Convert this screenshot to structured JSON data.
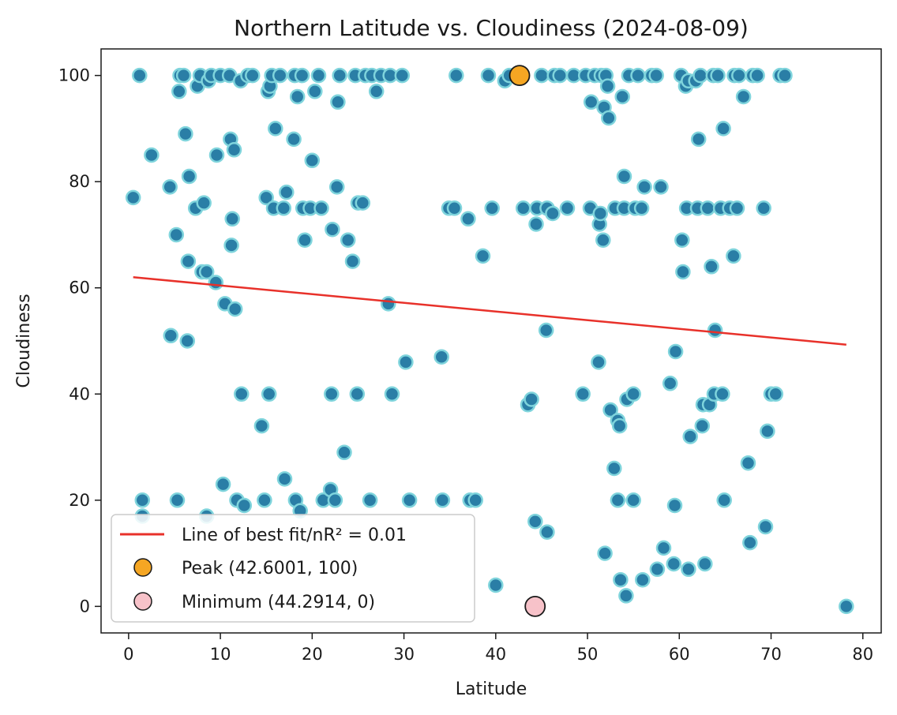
{
  "chart_data": {
    "type": "scatter",
    "title": "Northern Latitude vs. Cloudiness (2024-08-09)",
    "xlabel": "Latitude",
    "ylabel": "Cloudiness",
    "xlim": [
      -3,
      82
    ],
    "ylim": [
      -5,
      105
    ],
    "xticks": [
      0,
      10,
      20,
      30,
      40,
      50,
      60,
      70,
      80
    ],
    "yticks": [
      0,
      20,
      40,
      60,
      80,
      100
    ],
    "grid": false,
    "legend_position": "lower-left",
    "colors": {
      "points_fill": "#2a7ea6",
      "points_edge": "#7fd4dc",
      "fit_line": "#e8312a",
      "peak_marker": "#f5a623",
      "min_marker": "#f7c2c9",
      "marker_edge": "#1a1a1a"
    },
    "series": [
      {
        "name": "Cities",
        "points": [
          [
            0.5,
            77
          ],
          [
            1.2,
            100
          ],
          [
            1.5,
            20
          ],
          [
            1.5,
            17
          ],
          [
            2.5,
            85
          ],
          [
            4.5,
            79
          ],
          [
            4.6,
            51
          ],
          [
            5.2,
            70
          ],
          [
            5.3,
            20
          ],
          [
            5.5,
            97
          ],
          [
            5.6,
            100
          ],
          [
            6.0,
            100
          ],
          [
            6.2,
            89
          ],
          [
            6.4,
            50
          ],
          [
            6.5,
            65
          ],
          [
            6.6,
            81
          ],
          [
            7.3,
            75
          ],
          [
            7.5,
            98
          ],
          [
            7.8,
            100
          ],
          [
            8.0,
            63
          ],
          [
            8.2,
            76
          ],
          [
            8.5,
            63
          ],
          [
            8.5,
            17
          ],
          [
            8.7,
            99
          ],
          [
            9.0,
            100
          ],
          [
            9.5,
            61
          ],
          [
            9.6,
            85
          ],
          [
            10.0,
            100
          ],
          [
            10.5,
            57
          ],
          [
            10.3,
            23
          ],
          [
            11.0,
            100
          ],
          [
            11.1,
            88
          ],
          [
            11.2,
            68
          ],
          [
            11.3,
            73
          ],
          [
            11.5,
            86
          ],
          [
            11.6,
            56
          ],
          [
            11.8,
            20
          ],
          [
            12.2,
            99
          ],
          [
            12.3,
            40
          ],
          [
            12.6,
            19
          ],
          [
            13.0,
            100
          ],
          [
            13.5,
            100
          ],
          [
            14.5,
            34
          ],
          [
            14.8,
            20
          ],
          [
            15.0,
            77
          ],
          [
            15.2,
            97
          ],
          [
            15.3,
            40
          ],
          [
            15.4,
            98
          ],
          [
            15.6,
            100
          ],
          [
            15.8,
            75
          ],
          [
            16.0,
            90
          ],
          [
            16.5,
            100
          ],
          [
            16.9,
            75
          ],
          [
            17.0,
            24
          ],
          [
            17.2,
            78
          ],
          [
            18.0,
            88
          ],
          [
            18.1,
            100
          ],
          [
            18.2,
            20
          ],
          [
            18.4,
            96
          ],
          [
            18.7,
            18
          ],
          [
            18.9,
            100
          ],
          [
            19.0,
            75
          ],
          [
            19.2,
            69
          ],
          [
            19.8,
            75
          ],
          [
            20.0,
            84
          ],
          [
            20.3,
            97
          ],
          [
            20.7,
            100
          ],
          [
            21.0,
            75
          ],
          [
            21.2,
            20
          ],
          [
            22.0,
            22
          ],
          [
            22.1,
            40
          ],
          [
            22.2,
            71
          ],
          [
            22.5,
            20
          ],
          [
            22.7,
            79
          ],
          [
            22.8,
            95
          ],
          [
            23.0,
            100
          ],
          [
            23.5,
            29
          ],
          [
            23.9,
            69
          ],
          [
            24.4,
            65
          ],
          [
            24.7,
            100
          ],
          [
            24.9,
            40
          ],
          [
            25.0,
            76
          ],
          [
            25.5,
            76
          ],
          [
            25.8,
            100
          ],
          [
            26.3,
            20
          ],
          [
            26.5,
            100
          ],
          [
            27.0,
            97
          ],
          [
            27.5,
            100
          ],
          [
            28.3,
            57
          ],
          [
            28.5,
            100
          ],
          [
            28.7,
            40
          ],
          [
            29.8,
            100
          ],
          [
            30.2,
            46
          ],
          [
            30.6,
            20
          ],
          [
            34.1,
            47
          ],
          [
            34.2,
            20
          ],
          [
            34.9,
            75
          ],
          [
            35.5,
            75
          ],
          [
            35.7,
            100
          ],
          [
            37.0,
            73
          ],
          [
            37.2,
            20
          ],
          [
            37.8,
            20
          ],
          [
            38.6,
            66
          ],
          [
            39.2,
            100
          ],
          [
            39.6,
            75
          ],
          [
            40.0,
            4
          ],
          [
            41.0,
            99
          ],
          [
            41.5,
            100
          ],
          [
            42.8,
            100
          ],
          [
            43.0,
            75
          ],
          [
            43.5,
            38
          ],
          [
            43.9,
            39
          ],
          [
            44.3,
            16
          ],
          [
            44.4,
            72
          ],
          [
            44.5,
            75
          ],
          [
            45.0,
            100
          ],
          [
            45.5,
            52
          ],
          [
            45.6,
            75
          ],
          [
            45.6,
            14
          ],
          [
            46.2,
            74
          ],
          [
            46.4,
            100
          ],
          [
            47.0,
            100
          ],
          [
            47.8,
            75
          ],
          [
            48.5,
            100
          ],
          [
            49.5,
            40
          ],
          [
            49.8,
            100
          ],
          [
            50.3,
            75
          ],
          [
            50.4,
            95
          ],
          [
            50.8,
            100
          ],
          [
            51.2,
            46
          ],
          [
            51.3,
            72
          ],
          [
            51.4,
            74
          ],
          [
            51.5,
            100
          ],
          [
            51.7,
            69
          ],
          [
            51.8,
            94
          ],
          [
            51.9,
            10
          ],
          [
            52.0,
            100
          ],
          [
            52.2,
            98
          ],
          [
            52.3,
            92
          ],
          [
            52.5,
            37
          ],
          [
            52.9,
            26
          ],
          [
            53.0,
            75
          ],
          [
            53.3,
            20
          ],
          [
            53.3,
            35
          ],
          [
            53.5,
            34
          ],
          [
            53.6,
            5
          ],
          [
            53.8,
            96
          ],
          [
            54.0,
            75
          ],
          [
            54.0,
            81
          ],
          [
            54.2,
            2
          ],
          [
            54.3,
            39
          ],
          [
            54.5,
            100
          ],
          [
            55.0,
            40
          ],
          [
            55.0,
            20
          ],
          [
            55.2,
            75
          ],
          [
            55.5,
            100
          ],
          [
            55.9,
            75
          ],
          [
            56.2,
            79
          ],
          [
            56.0,
            5
          ],
          [
            57.0,
            100
          ],
          [
            57.5,
            100
          ],
          [
            57.6,
            7
          ],
          [
            58.0,
            79
          ],
          [
            58.3,
            11
          ],
          [
            59.0,
            42
          ],
          [
            59.4,
            8
          ],
          [
            59.5,
            19
          ],
          [
            59.6,
            48
          ],
          [
            60.2,
            100
          ],
          [
            60.3,
            69
          ],
          [
            60.4,
            63
          ],
          [
            60.7,
            98
          ],
          [
            60.8,
            75
          ],
          [
            61.0,
            99
          ],
          [
            61.2,
            32
          ],
          [
            61.0,
            7
          ],
          [
            61.8,
            99
          ],
          [
            62.0,
            75
          ],
          [
            62.1,
            88
          ],
          [
            62.3,
            100
          ],
          [
            62.5,
            34
          ],
          [
            62.6,
            38
          ],
          [
            62.8,
            8
          ],
          [
            63.1,
            75
          ],
          [
            63.3,
            38
          ],
          [
            63.5,
            64
          ],
          [
            63.7,
            100
          ],
          [
            63.8,
            40
          ],
          [
            63.9,
            52
          ],
          [
            64.2,
            100
          ],
          [
            64.5,
            75
          ],
          [
            64.7,
            40
          ],
          [
            64.8,
            90
          ],
          [
            64.9,
            20
          ],
          [
            65.5,
            75
          ],
          [
            65.9,
            66
          ],
          [
            66.0,
            100
          ],
          [
            66.3,
            75
          ],
          [
            66.5,
            100
          ],
          [
            67.0,
            96
          ],
          [
            67.5,
            27
          ],
          [
            67.7,
            12
          ],
          [
            68.0,
            100
          ],
          [
            68.5,
            100
          ],
          [
            69.2,
            75
          ],
          [
            69.4,
            15
          ],
          [
            69.6,
            33
          ],
          [
            70.0,
            40
          ],
          [
            70.5,
            40
          ],
          [
            71.0,
            100
          ],
          [
            71.5,
            100
          ],
          [
            78.2,
            0
          ]
        ]
      },
      {
        "name": "Line of best fit/nR² = 0.01",
        "type": "line",
        "points": [
          [
            0.5,
            62
          ],
          [
            78.2,
            49.3
          ]
        ]
      },
      {
        "name": "Peak (42.6001, 100)",
        "points": [
          [
            42.6001,
            100
          ]
        ]
      },
      {
        "name": "Minimum (44.2914, 0)",
        "points": [
          [
            44.2914,
            0
          ]
        ]
      }
    ]
  }
}
